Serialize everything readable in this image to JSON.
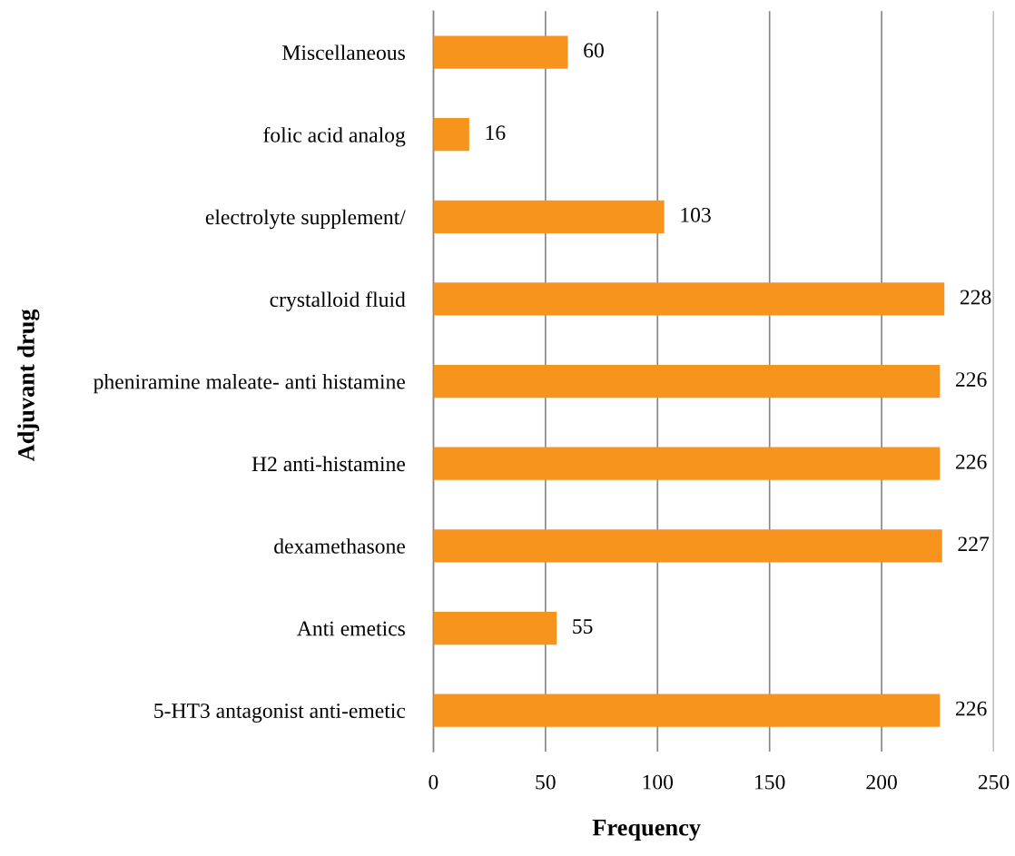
{
  "chart_data": {
    "type": "bar",
    "orientation": "horizontal",
    "xlabel": "Frequency",
    "ylabel": "Adjuvant drug",
    "categories": [
      "Miscellaneous",
      "folic acid analog",
      "electrolyte supplement/",
      "crystalloid fluid",
      "pheniramine maleate- anti histamine",
      "H2 anti-histamine",
      "dexamethasone",
      "Anti emetics",
      "5-HT3 antagonist anti-emetic"
    ],
    "values": [
      60,
      16,
      103,
      228,
      226,
      226,
      227,
      55,
      226
    ],
    "color": "#f7941d",
    "xlim": [
      0,
      250
    ],
    "xticks": [
      0,
      50,
      100,
      150,
      200,
      250
    ],
    "grid": "x",
    "data_labels": true
  }
}
